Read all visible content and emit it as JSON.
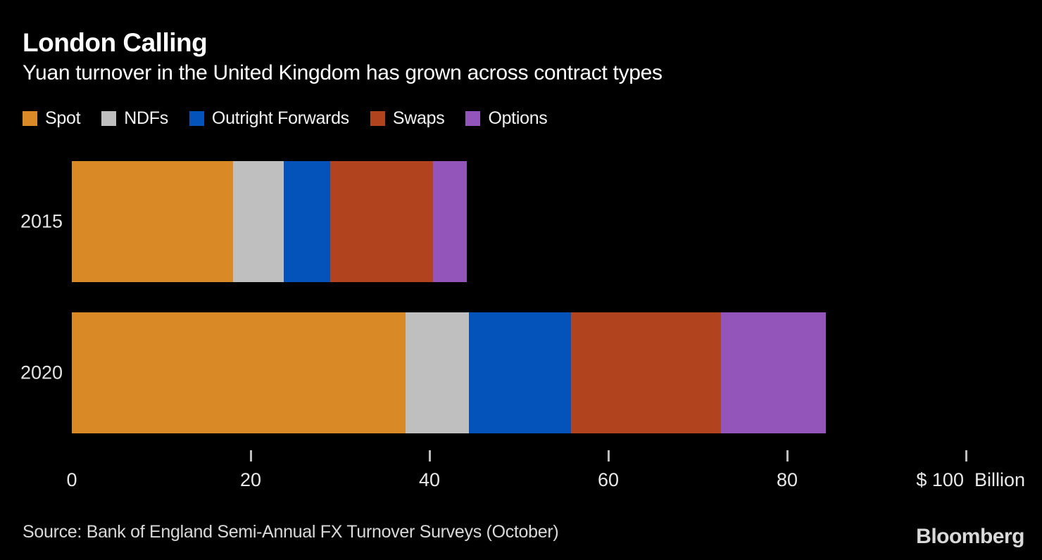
{
  "header": {
    "title": "London Calling",
    "subtitle": "Yuan turnover in the United Kingdom has grown across contract types"
  },
  "footer": {
    "source": "Source: Bank of England Semi-Annual FX Turnover Surveys (October)",
    "logo": "Bloomberg"
  },
  "colors": {
    "background": "#000000",
    "text_primary": "#ffffff",
    "text_axis": "#e8e8e8",
    "tick_mark": "#bdbdbd"
  },
  "chart_data": {
    "type": "bar",
    "orientation": "horizontal",
    "stacked": true,
    "title": "London Calling",
    "subtitle": "Yuan turnover in the United Kingdom has grown across contract types",
    "unit": "$ Billion",
    "legend_position": "top",
    "grid": false,
    "categories": [
      "2015",
      "2020"
    ],
    "series": [
      {
        "name": "Spot",
        "color": "#d98a27",
        "values": [
          18.0,
          37.3
        ]
      },
      {
        "name": "NDFs",
        "color": "#bfbfbf",
        "values": [
          5.7,
          7.1
        ]
      },
      {
        "name": "Outright Forwards",
        "color": "#0453bb",
        "values": [
          5.2,
          11.4
        ]
      },
      {
        "name": "Swaps",
        "color": "#b1431f",
        "values": [
          11.5,
          16.8
        ]
      },
      {
        "name": "Options",
        "color": "#9455ba",
        "values": [
          3.8,
          11.7
        ]
      }
    ],
    "totals": [
      44.2,
      84.3
    ],
    "x_axis": {
      "range": [
        0,
        106
      ],
      "ticks": [
        {
          "value": 0,
          "label": "0",
          "mark": false,
          "align": "center"
        },
        {
          "value": 20,
          "label": "20",
          "mark": true,
          "align": "center"
        },
        {
          "value": 40,
          "label": "40",
          "mark": true,
          "align": "center"
        },
        {
          "value": 60,
          "label": "60",
          "mark": true,
          "align": "center"
        },
        {
          "value": 80,
          "label": "80",
          "mark": true,
          "align": "center"
        },
        {
          "value": 100,
          "label": "$ 100  Billion",
          "mark": true,
          "align": "right"
        }
      ]
    }
  }
}
